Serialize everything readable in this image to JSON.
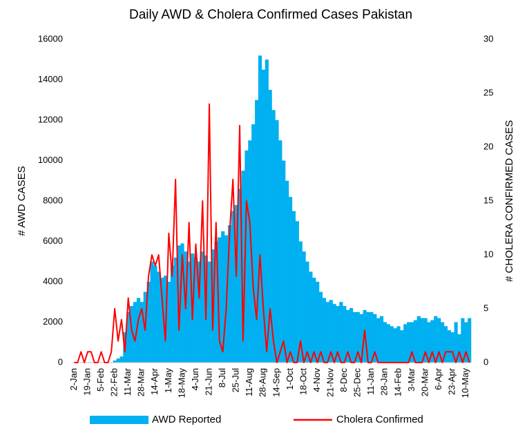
{
  "chart_data": {
    "type": "bar-line",
    "title": "Daily AWD & Cholera Confirmed Cases Pakistan",
    "y_label": "# AWD CASES",
    "y2_label": "# CHOLERA CONFIRMED CASES",
    "categories": [
      "2-Jan",
      null,
      null,
      null,
      "19-Jan",
      null,
      null,
      null,
      "5-Feb",
      null,
      null,
      null,
      "22-Feb",
      null,
      null,
      null,
      "11-Mar",
      null,
      null,
      null,
      "28-Mar",
      null,
      null,
      null,
      "14-Apr",
      null,
      null,
      null,
      "1-May",
      null,
      null,
      null,
      "18-May",
      null,
      null,
      null,
      "4-Jun",
      null,
      null,
      null,
      "21-Jun",
      null,
      null,
      null,
      "8-Jul",
      null,
      null,
      null,
      "25-Jul",
      null,
      null,
      null,
      "11-Aug",
      null,
      null,
      null,
      "28-Aug",
      null,
      null,
      null,
      "14-Sep",
      null,
      null,
      null,
      "1-Oct",
      null,
      null,
      null,
      "18-Oct",
      null,
      null,
      null,
      "4-Nov",
      null,
      null,
      null,
      "21-Nov",
      null,
      null,
      null,
      "8-Dec",
      null,
      null,
      null,
      "25-Dec",
      null,
      null,
      null,
      "11-Jan",
      null,
      null,
      null,
      "28-Jan",
      null,
      null,
      null,
      "14-Feb",
      null,
      null,
      null,
      "3-Mar",
      null,
      null,
      null,
      "20-Mar",
      null,
      null,
      null,
      "6-Apr",
      null,
      null,
      null,
      "23-Apr",
      null,
      null,
      null,
      "10-May",
      null
    ],
    "series": [
      {
        "name": "AWD Reported",
        "color": "#00b0f0",
        "kind": "bar",
        "axis": "y",
        "values": [
          0,
          0,
          0,
          0,
          0,
          0,
          0,
          0,
          0,
          0,
          0,
          0,
          100,
          200,
          300,
          1500,
          2500,
          2800,
          3000,
          3200,
          3000,
          3500,
          4000,
          5000,
          4800,
          4500,
          4200,
          4300,
          4000,
          4800,
          5200,
          5800,
          5900,
          5500,
          5000,
          5400,
          5200,
          5000,
          5500,
          5300,
          5000,
          5600,
          6000,
          6200,
          6500,
          6300,
          6800,
          7500,
          7800,
          8600,
          9500,
          10500,
          11000,
          11800,
          13000,
          15200,
          14500,
          15000,
          13500,
          12500,
          12000,
          11000,
          10000,
          9000,
          8200,
          7500,
          7000,
          6000,
          5500,
          5000,
          4500,
          4200,
          4000,
          3500,
          3200,
          3000,
          3100,
          2900,
          2800,
          3000,
          2800,
          2600,
          2700,
          2500,
          2500,
          2400,
          2600,
          2500,
          2500,
          2400,
          2200,
          2300,
          2000,
          1900,
          1800,
          1700,
          1800,
          1600,
          1900,
          2000,
          2000,
          2100,
          2300,
          2200,
          2200,
          2000,
          2100,
          2300,
          2200,
          2000,
          1800,
          1600,
          1500,
          2000,
          1400,
          2200,
          2000,
          2200
        ]
      },
      {
        "name": "Cholera Confirmed",
        "color": "#ff0000",
        "kind": "line",
        "axis": "y2",
        "values": [
          0,
          0,
          1,
          0,
          1,
          1,
          0,
          0,
          1,
          0,
          0,
          1,
          5,
          2,
          4,
          1,
          6,
          3,
          2,
          4,
          5,
          3,
          8,
          10,
          9,
          10,
          6,
          2,
          12,
          8,
          17,
          3,
          10,
          5,
          13,
          4,
          11,
          6,
          15,
          4,
          24,
          3,
          13,
          2,
          1,
          5,
          12,
          17,
          8,
          22,
          2,
          15,
          13,
          7,
          4,
          10,
          5,
          1,
          5,
          2,
          0,
          1,
          2,
          0,
          1,
          0,
          0,
          2,
          0,
          1,
          0,
          1,
          0,
          1,
          0,
          0,
          1,
          0,
          1,
          0,
          0,
          1,
          0,
          0,
          1,
          0,
          3,
          0,
          0,
          1,
          0,
          0,
          0,
          0,
          0,
          0,
          0,
          0,
          0,
          0,
          1,
          0,
          0,
          0,
          1,
          0,
          1,
          0,
          1,
          0,
          1,
          1,
          1,
          0,
          1,
          0,
          1,
          0
        ]
      }
    ],
    "ylim": [
      0,
      16000
    ],
    "yticks": [
      0,
      2000,
      4000,
      6000,
      8000,
      10000,
      12000,
      14000,
      16000
    ],
    "y2lim": [
      0,
      30
    ],
    "y2ticks": [
      0,
      5,
      10,
      15,
      20,
      25,
      30
    ],
    "grid": false,
    "legend": "bottom"
  }
}
